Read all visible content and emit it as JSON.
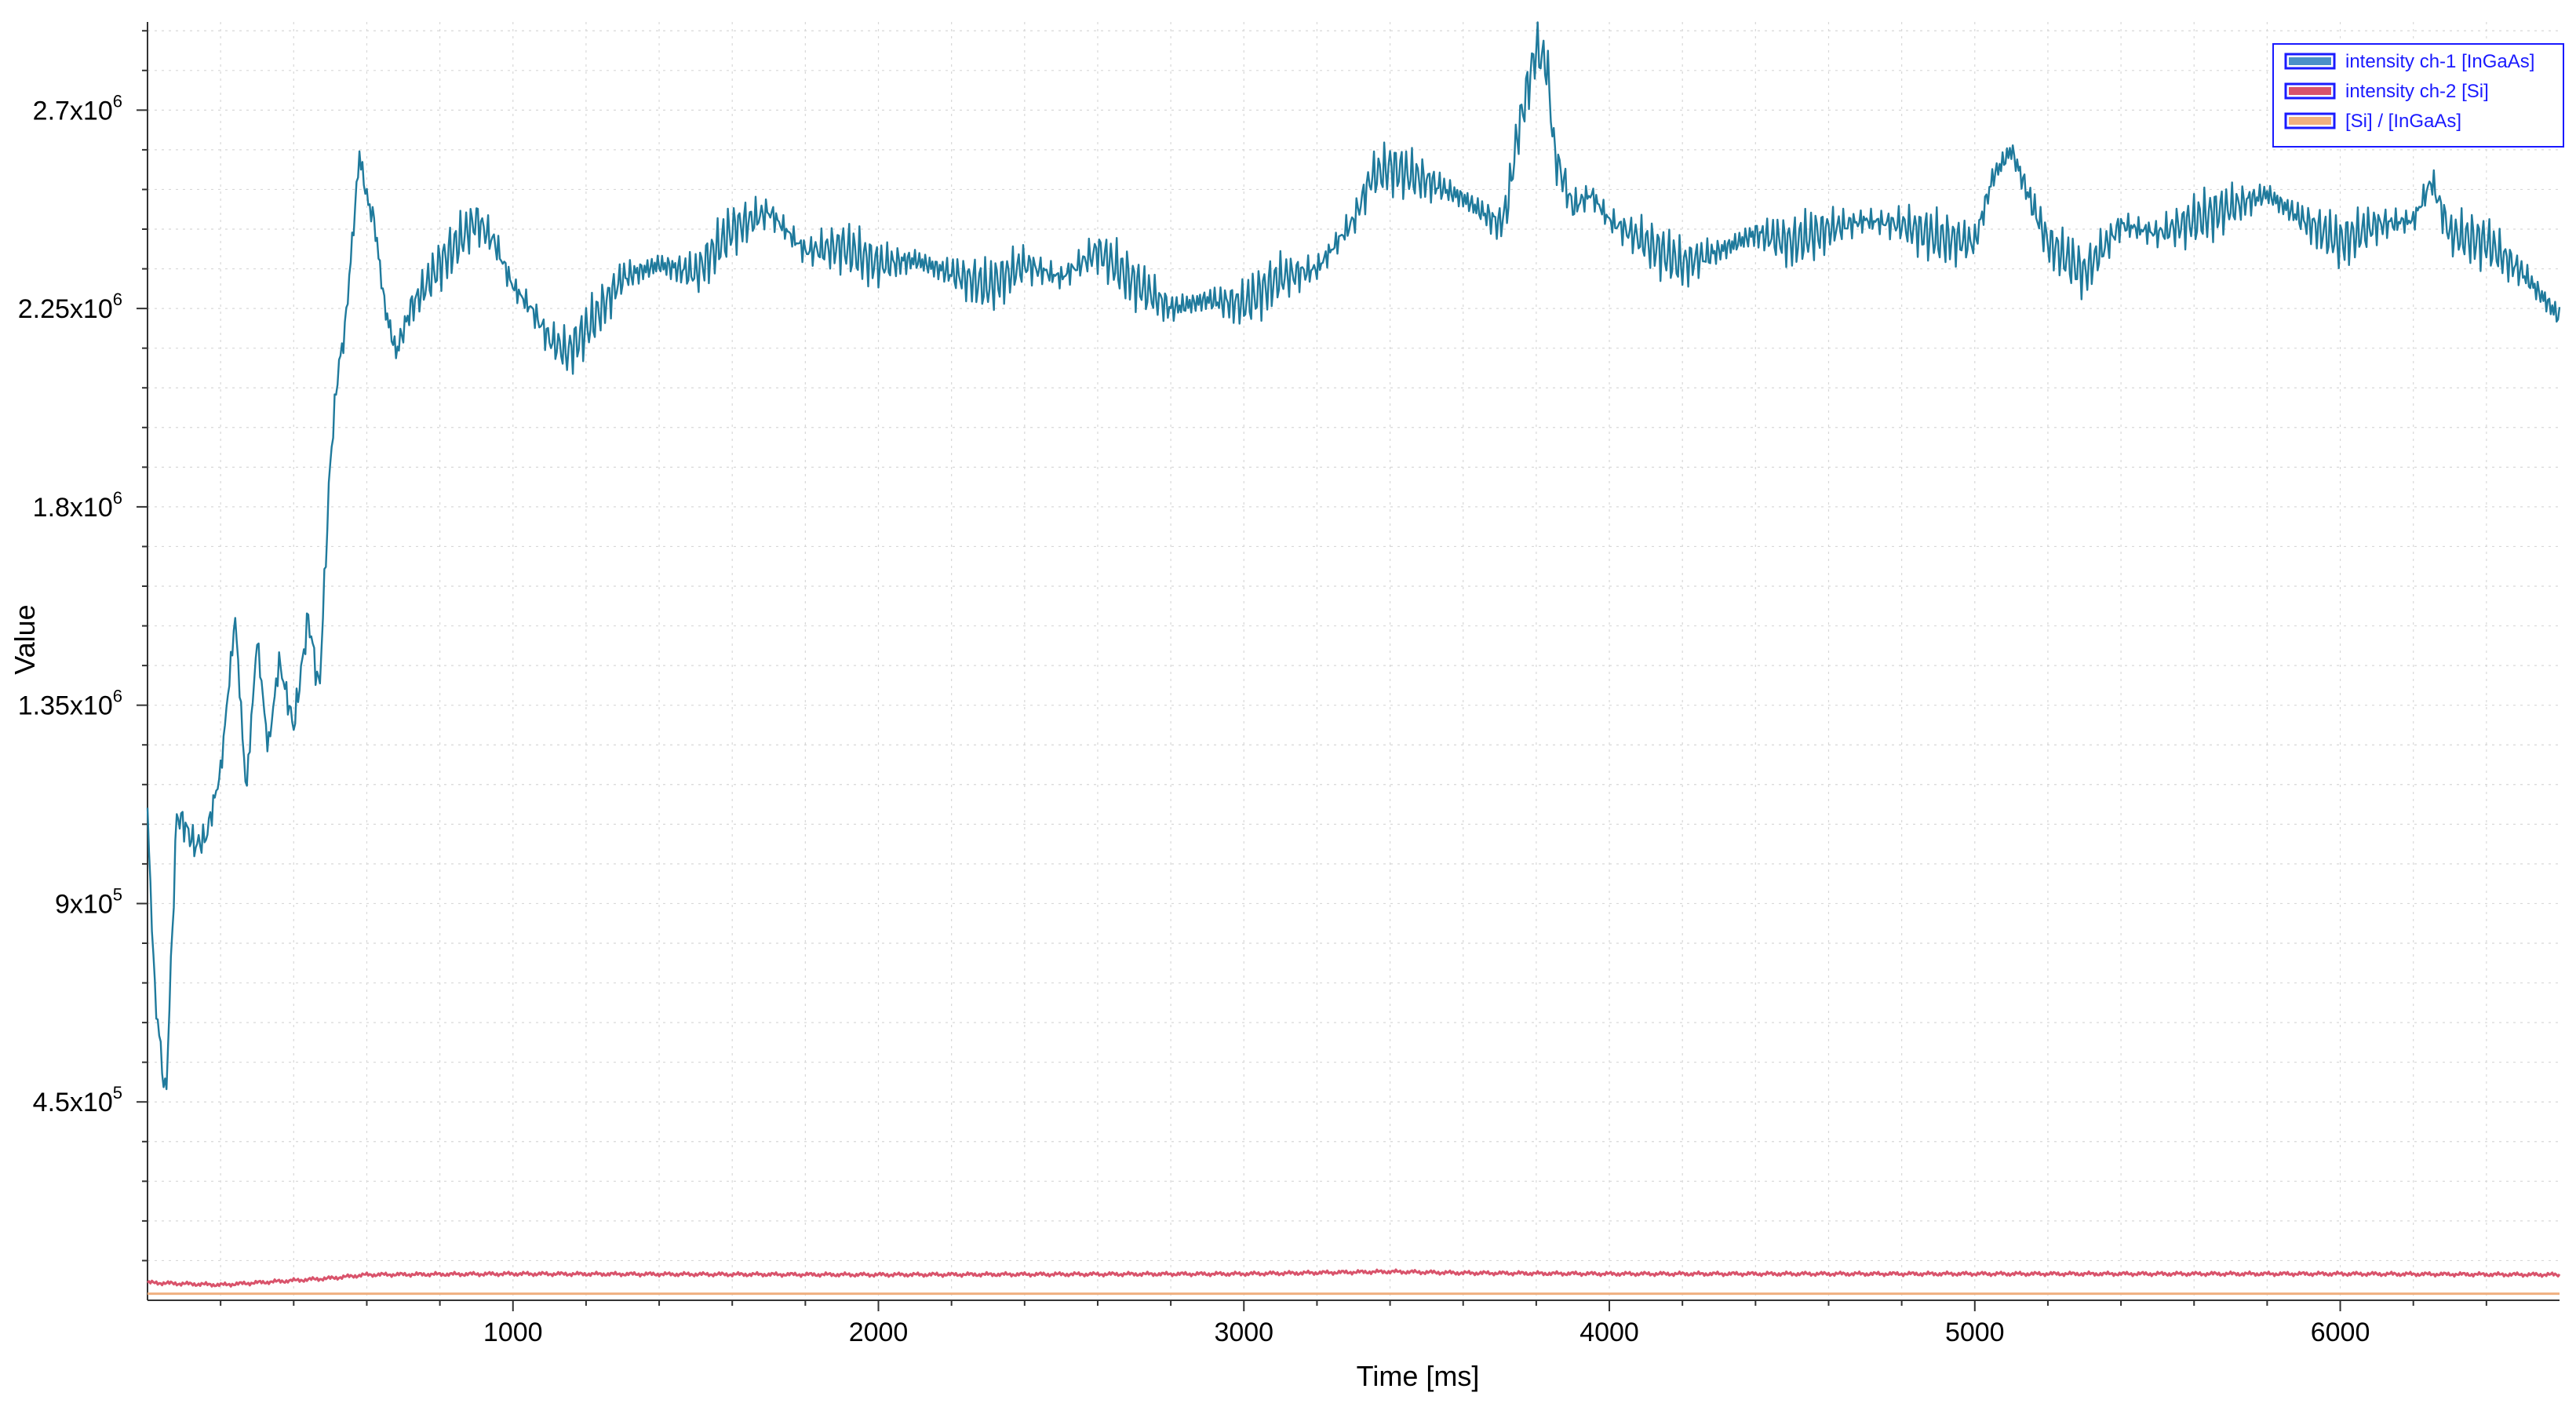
{
  "chart_data": {
    "type": "line",
    "xlabel": "Time [ms]",
    "ylabel": "Value",
    "xlim": [
      0,
      6600
    ],
    "ylim": [
      0,
      2900000
    ],
    "x_ticks": [
      {
        "value": 1000,
        "label": "1000"
      },
      {
        "value": 2000,
        "label": "2000"
      },
      {
        "value": 3000,
        "label": "3000"
      },
      {
        "value": 4000,
        "label": "4000"
      },
      {
        "value": 5000,
        "label": "5000"
      },
      {
        "value": 6000,
        "label": "6000"
      }
    ],
    "y_ticks": [
      {
        "value": 450000,
        "mantissa": "4.5x10",
        "exp": "5"
      },
      {
        "value": 900000,
        "mantissa": "9x10",
        "exp": "5"
      },
      {
        "value": 1350000,
        "mantissa": "1.35x10",
        "exp": "6"
      },
      {
        "value": 1800000,
        "mantissa": "1.8x10",
        "exp": "6"
      },
      {
        "value": 2250000,
        "mantissa": "2.25x10",
        "exp": "6"
      },
      {
        "value": 2700000,
        "mantissa": "2.7x10",
        "exp": "6"
      }
    ],
    "grid": true,
    "legend_position": "top-right",
    "legend": [
      {
        "label": "intensity ch-1 [InGaAs]",
        "color": "#4a90c8"
      },
      {
        "label": "intensity ch-2 [Si]",
        "color": "#d9536b"
      },
      {
        "label": "[Si] / [InGaAs]",
        "color": "#f0b080"
      }
    ],
    "series": [
      {
        "name": "intensity ch-1 [InGaAs]",
        "color": "#1f7a9c",
        "x": [
          0,
          20,
          50,
          80,
          100,
          130,
          160,
          200,
          240,
          270,
          300,
          330,
          360,
          400,
          440,
          470,
          500,
          520,
          540,
          560,
          580,
          600,
          620,
          650,
          680,
          720,
          800,
          900,
          950,
          1000,
          1050,
          1100,
          1150,
          1200,
          1300,
          1400,
          1500,
          1600,
          1700,
          1800,
          1900,
          2000,
          2100,
          2200,
          2300,
          2400,
          2500,
          2600,
          2700,
          2800,
          2900,
          3000,
          3100,
          3200,
          3300,
          3350,
          3400,
          3500,
          3600,
          3700,
          3720,
          3750,
          3800,
          3830,
          3850,
          3900,
          3950,
          4000,
          4100,
          4200,
          4300,
          4400,
          4500,
          4600,
          4700,
          4800,
          4900,
          5000,
          5050,
          5100,
          5150,
          5200,
          5300,
          5400,
          5500,
          5600,
          5700,
          5800,
          5900,
          6000,
          6100,
          6200,
          6250,
          6300,
          6400,
          6500,
          6600
        ],
        "y": [
          1100000,
          700000,
          450000,
          1100000,
          1080000,
          1030000,
          1050000,
          1200000,
          1550000,
          1150000,
          1500000,
          1250000,
          1450000,
          1300000,
          1550000,
          1380000,
          1900000,
          2100000,
          2200000,
          2400000,
          2600000,
          2500000,
          2450000,
          2250000,
          2150000,
          2250000,
          2350000,
          2450000,
          2400000,
          2300000,
          2250000,
          2180000,
          2150000,
          2200000,
          2320000,
          2350000,
          2330000,
          2430000,
          2470000,
          2380000,
          2390000,
          2350000,
          2360000,
          2330000,
          2300000,
          2350000,
          2320000,
          2380000,
          2310000,
          2250000,
          2270000,
          2260000,
          2320000,
          2340000,
          2450000,
          2550000,
          2570000,
          2540000,
          2500000,
          2440000,
          2480000,
          2650000,
          2840000,
          2800000,
          2600000,
          2480000,
          2510000,
          2450000,
          2400000,
          2350000,
          2380000,
          2420000,
          2400000,
          2430000,
          2450000,
          2440000,
          2410000,
          2400000,
          2550000,
          2610000,
          2500000,
          2400000,
          2330000,
          2440000,
          2420000,
          2450000,
          2480000,
          2510000,
          2450000,
          2400000,
          2440000,
          2450000,
          2540000,
          2420000,
          2400000,
          2330000,
          2230000
        ]
      },
      {
        "name": "intensity ch-2 [Si]",
        "color": "#d9536b",
        "x": [
          0,
          200,
          500,
          600,
          1000,
          2000,
          3000,
          3400,
          3600,
          4000,
          5000,
          6000,
          6600
        ],
        "y": [
          40000,
          35000,
          50000,
          58000,
          60000,
          58000,
          60000,
          65000,
          62000,
          60000,
          60000,
          60000,
          58000
        ]
      },
      {
        "name": "[Si] / [InGaAs]",
        "color": "#f0b080",
        "x": [
          0,
          6600
        ],
        "y": [
          15000,
          15000
        ]
      }
    ]
  }
}
